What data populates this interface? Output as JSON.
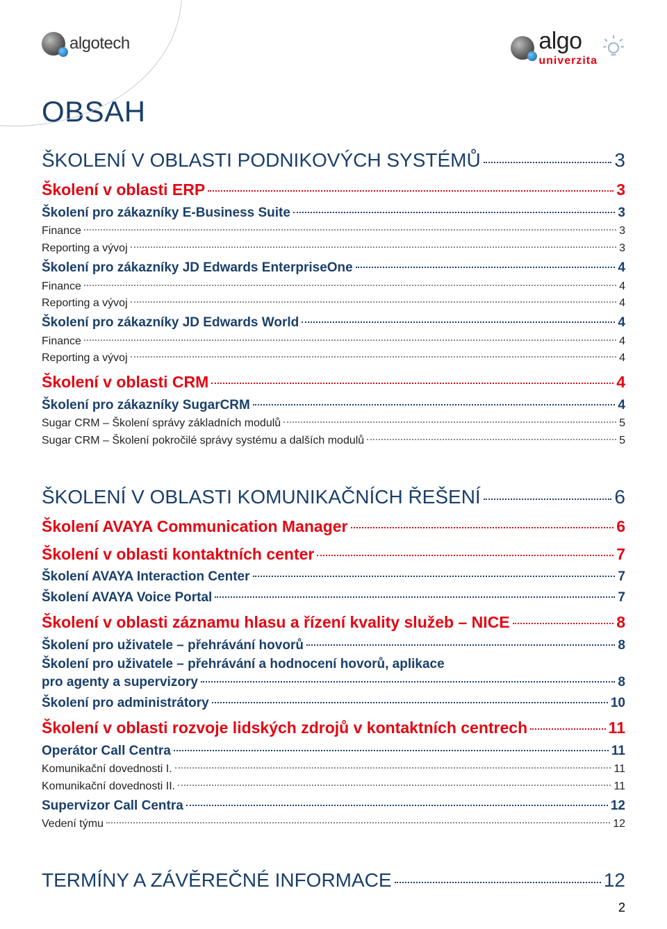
{
  "colors": {
    "primary_blue": "#1a3f6b",
    "accent_red": "#e30613",
    "body_text": "#222222",
    "leader_gray": "#9a9a9a",
    "background": "#ffffff"
  },
  "typography": {
    "title_fontsize_pt": 32,
    "level0_fontsize_pt": 21,
    "level1_fontsize_pt": 17,
    "level2_fontsize_pt": 14,
    "level3_fontsize_pt": 12
  },
  "header": {
    "brand_left": "algotech",
    "brand_right": "algo",
    "brand_right_sub": "univerzita"
  },
  "title": "OBSAH",
  "page_number": "2",
  "toc": [
    {
      "level": 0,
      "text": "ŠKOLENÍ V OBLASTI PODNIKOVÝCH SYSTÉMŮ",
      "page": "3"
    },
    {
      "level": 1,
      "color": "red",
      "text": "Školení v oblasti ERP",
      "page": "3"
    },
    {
      "level": 2,
      "color": "blue",
      "text": "Školení pro zákazníky E-Business Suite",
      "page": "3"
    },
    {
      "level": 3,
      "text": "Finance",
      "page": "3"
    },
    {
      "level": 3,
      "text": "Reporting a vývoj",
      "page": "3"
    },
    {
      "level": 2,
      "color": "blue",
      "text": "Školení pro zákazníky JD Edwards EnterpriseOne",
      "page": "4"
    },
    {
      "level": 3,
      "text": "Finance",
      "page": "4"
    },
    {
      "level": 3,
      "text": "Reporting a vývoj",
      "page": "4"
    },
    {
      "level": 2,
      "color": "blue",
      "text": "Školení pro zákazníky JD Edwards World",
      "page": "4"
    },
    {
      "level": 3,
      "text": "Finance",
      "page": "4"
    },
    {
      "level": 3,
      "text": "Reporting a vývoj",
      "page": "4"
    },
    {
      "level": 1,
      "color": "red",
      "text": "Školení v oblasti CRM",
      "page": "4"
    },
    {
      "level": 2,
      "color": "blue",
      "text": "Školení pro zákazníky SugarCRM",
      "page": "4"
    },
    {
      "level": 3,
      "text": "Sugar CRM – Školení správy základních modulů",
      "page": "5"
    },
    {
      "level": 3,
      "text": "Sugar CRM – Školení pokročilé správy systému a dalších modulů",
      "page": "5"
    },
    {
      "level": 0,
      "text": "ŠKOLENÍ V OBLASTI KOMUNIKAČNÍCH ŘEŠENÍ",
      "page": "6"
    },
    {
      "level": 1,
      "color": "red",
      "text": "Školení AVAYA Communication Manager",
      "page": "6"
    },
    {
      "level": 1,
      "color": "red",
      "text": "Školení v oblasti kontaktních center",
      "page": "7"
    },
    {
      "level": 2,
      "color": "blue",
      "text": "Školení AVAYA Interaction Center",
      "page": "7"
    },
    {
      "level": 2,
      "color": "blue",
      "text": "Školení AVAYA Voice Portal",
      "page": "7"
    },
    {
      "level": 1,
      "color": "red",
      "text": "Školení v oblasti záznamu hlasu a řízení kvality služeb – NICE",
      "page": "8"
    },
    {
      "level": 2,
      "color": "blue",
      "text": "Školení pro uživatele – přehrávání hovorů",
      "page": "8"
    },
    {
      "level": 2,
      "color": "blue",
      "wrap": true,
      "text_line1": "Školení pro uživatele – přehrávání a hodnocení hovorů, aplikace",
      "text_line2": "pro agenty a supervizory",
      "page": "8"
    },
    {
      "level": 2,
      "color": "blue",
      "text": "Školení pro administrátory",
      "page": "10"
    },
    {
      "level": 1,
      "color": "red",
      "text": "Školení v oblasti rozvoje lidských zdrojů v kontaktních centrech",
      "page": "11"
    },
    {
      "level": 2,
      "color": "blue",
      "text": "Operátor Call Centra",
      "page": "11"
    },
    {
      "level": 3,
      "text": "Komunikační dovednosti I.",
      "page": "11"
    },
    {
      "level": 3,
      "text": "Komunikační dovednosti II.",
      "page": "11"
    },
    {
      "level": 2,
      "color": "blue",
      "text": "Supervizor Call Centra",
      "page": "12"
    },
    {
      "level": 3,
      "text": "Vedení týmu",
      "page": "12"
    },
    {
      "level": 0,
      "text": "TERMÍNY A ZÁVĚREČNÉ INFORMACE",
      "page": "12"
    }
  ]
}
